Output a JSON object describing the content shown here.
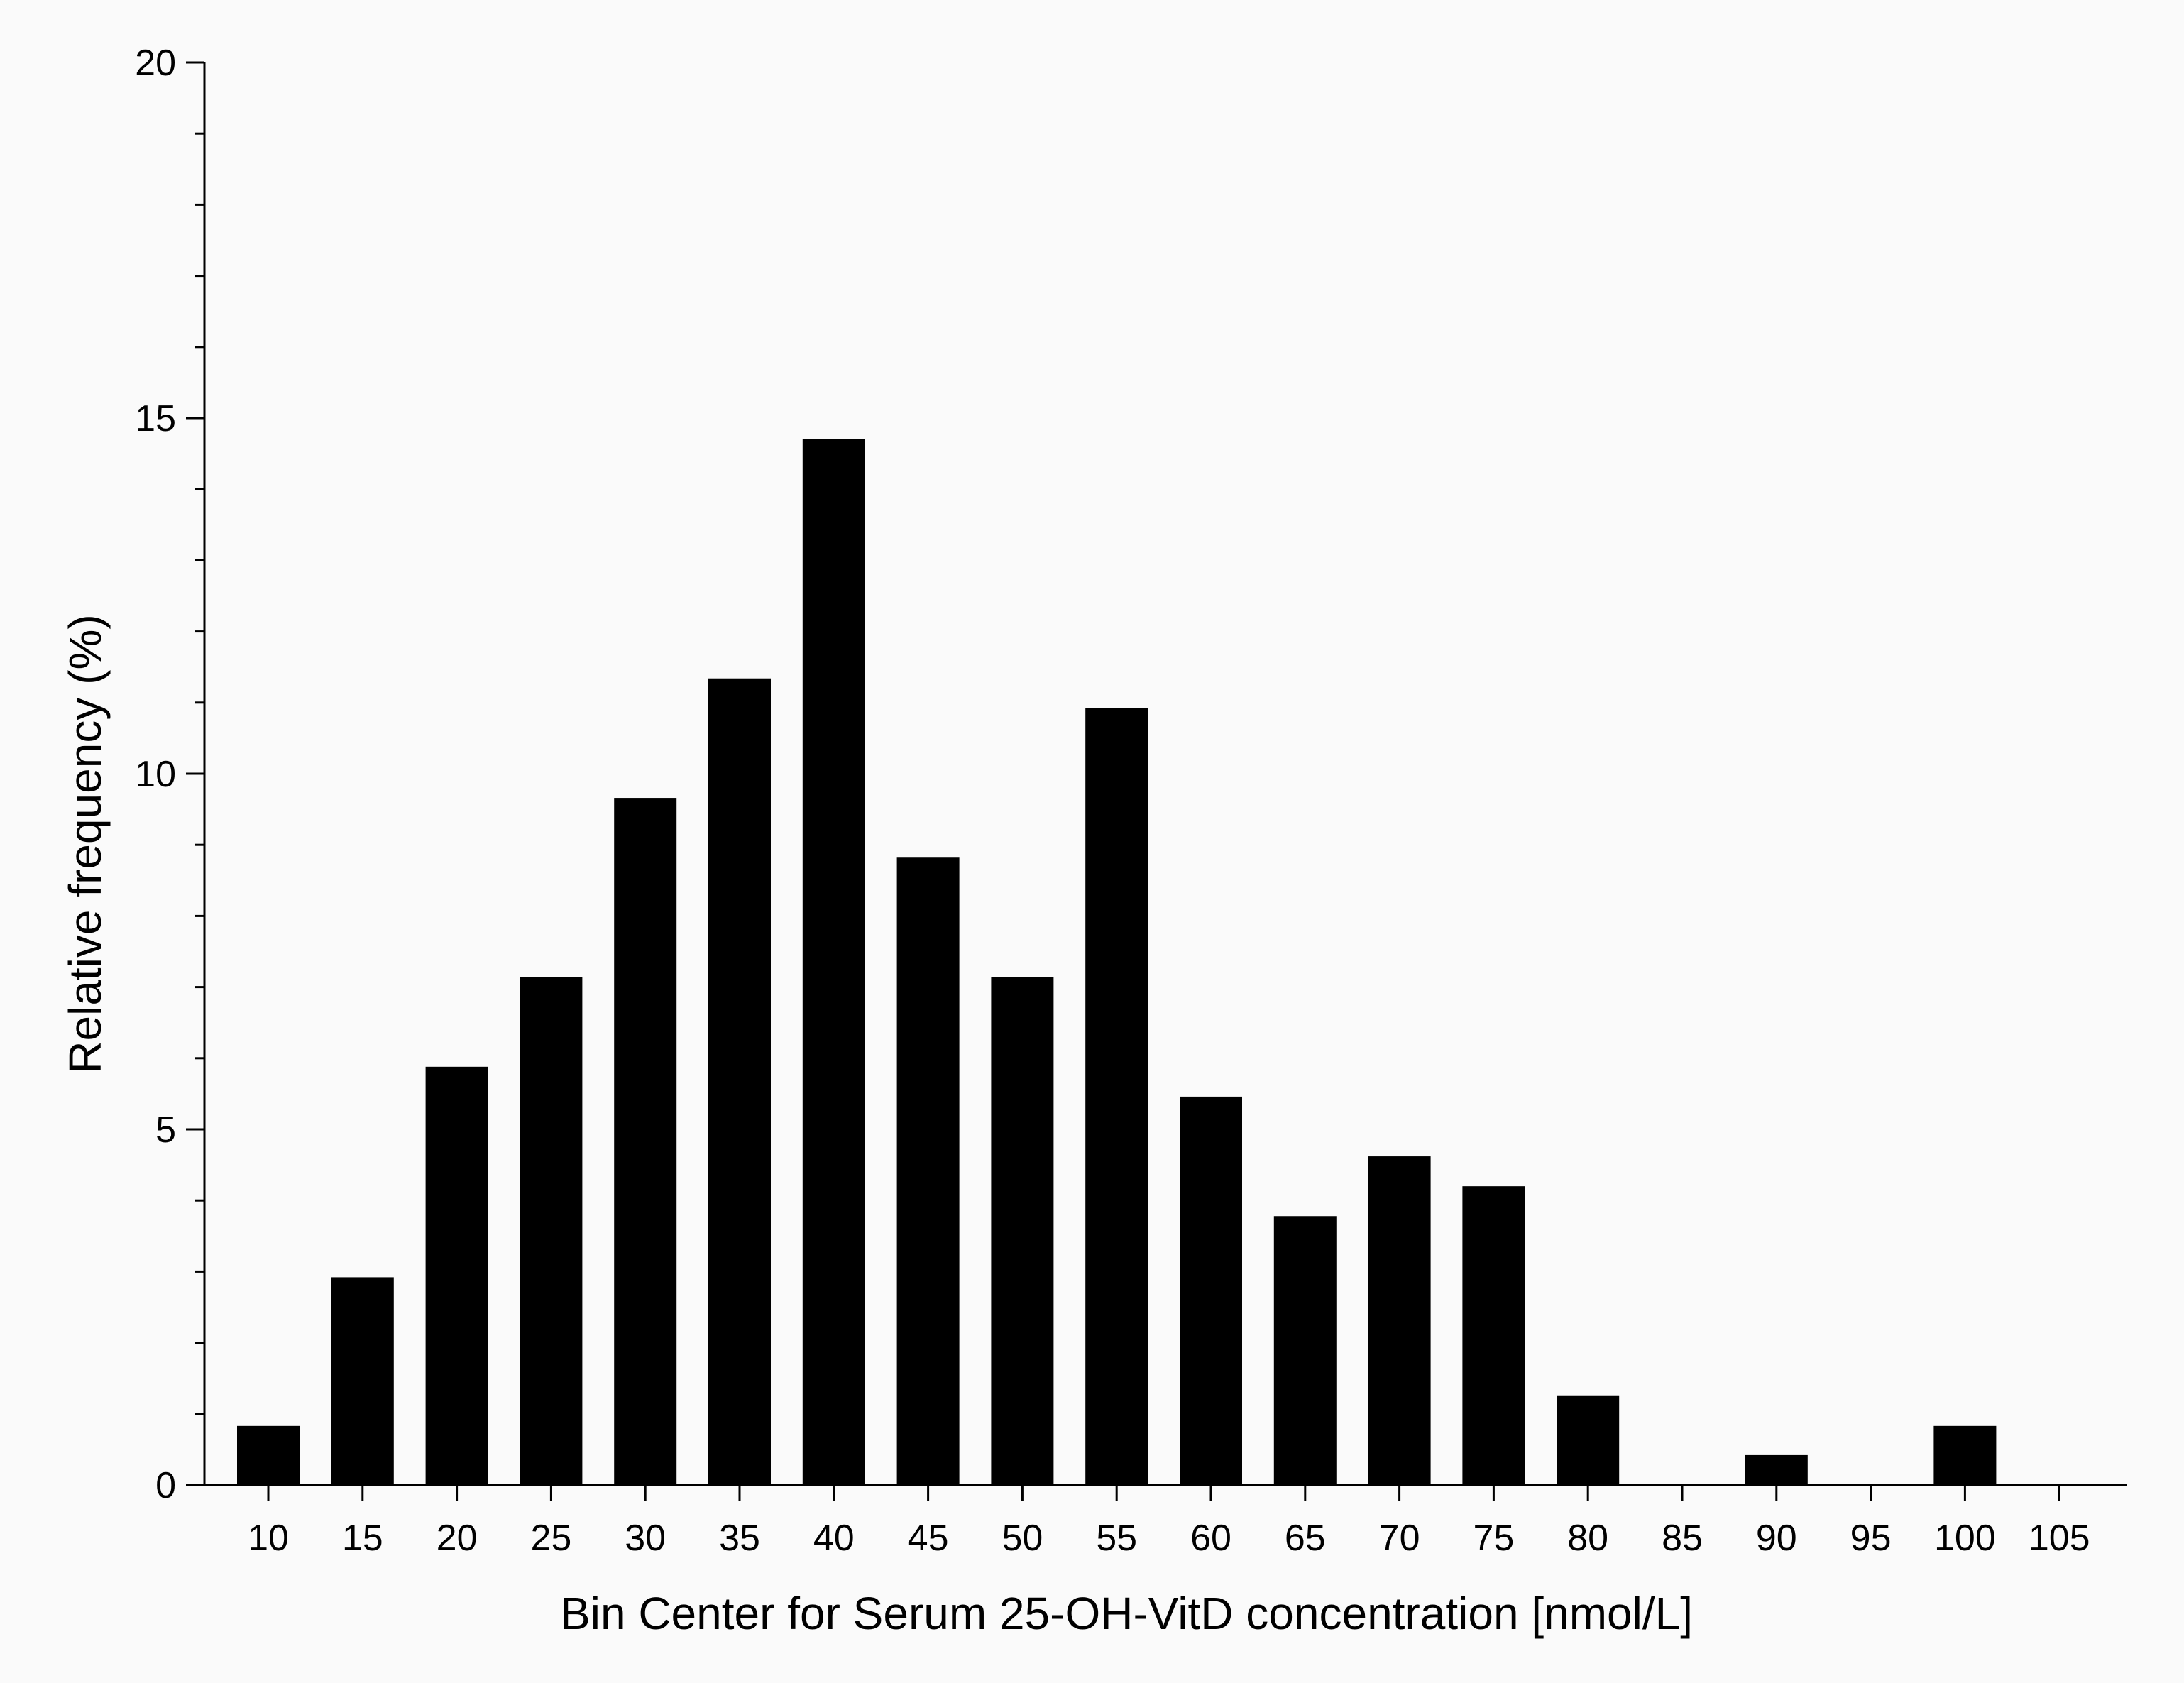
{
  "chart_data": {
    "type": "bar",
    "title": "",
    "xlabel": "Bin Center for Serum 25-OH-VitD concentration [nmol/L]",
    "ylabel": "Relative frequency (%)",
    "categories": [
      "10",
      "15",
      "20",
      "25",
      "30",
      "35",
      "40",
      "45",
      "50",
      "55",
      "60",
      "65",
      "70",
      "75",
      "80",
      "85",
      "90",
      "95",
      "100",
      "105"
    ],
    "values": [
      0.83,
      2.92,
      5.88,
      7.14,
      9.66,
      11.34,
      14.71,
      8.82,
      7.14,
      10.92,
      5.46,
      3.78,
      4.62,
      4.2,
      1.26,
      0,
      0.42,
      0,
      0.83,
      0
    ],
    "ylim": [
      0,
      20
    ],
    "y_major_ticks": [
      0,
      5,
      10,
      15,
      20
    ],
    "y_minor_step": 1,
    "grid": false,
    "legend": "none",
    "bar_color": "#000000",
    "axis_color": "#000000",
    "background_color": "#fafafa"
  }
}
